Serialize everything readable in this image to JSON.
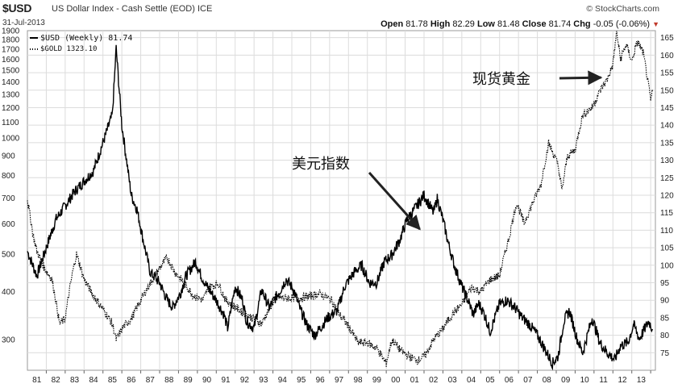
{
  "header": {
    "ticker": "$USD",
    "description": "US Dollar Index - Cash Settle (EOD)",
    "exchange": "ICE",
    "date": "31-Jul-2013",
    "brand": "© StockCharts.com",
    "ohlc": [
      {
        "label": "Open",
        "value": "81.78"
      },
      {
        "label": "High",
        "value": "82.29"
      },
      {
        "label": "Low",
        "value": "81.48"
      },
      {
        "label": "Close",
        "value": "81.74"
      },
      {
        "label": "Chg",
        "value": "-0.05 (-0.06%)"
      }
    ]
  },
  "colors": {
    "line": "#000000",
    "grid": "#dcdcdc",
    "chg_down": "#c0392b"
  },
  "chart_data": {
    "type": "line",
    "title": "$USD US Dollar Index - Cash Settle (EOD)",
    "x_axis": {
      "type": "time",
      "ticks": [
        "81",
        "82",
        "83",
        "84",
        "85",
        "86",
        "87",
        "88",
        "89",
        "90",
        "91",
        "92",
        "93",
        "94",
        "95",
        "96",
        "97",
        "98",
        "99",
        "00",
        "01",
        "02",
        "03",
        "04",
        "05",
        "06",
        "07",
        "08",
        "09",
        "10",
        "11",
        "12",
        "13"
      ]
    },
    "y_left": {
      "scale": "log",
      "range": [
        250,
        1900
      ],
      "ticks": [
        1900,
        1800,
        1700,
        1600,
        1500,
        1400,
        1300,
        1200,
        1100,
        1000,
        900,
        800,
        700,
        600,
        500,
        400,
        300
      ],
      "series": "$GOLD"
    },
    "y_right": {
      "scale": "linear",
      "range": [
        70,
        167
      ],
      "ticks": [
        165,
        160,
        155,
        150,
        145,
        140,
        135,
        130,
        125,
        120,
        115,
        110,
        105,
        100,
        95,
        90,
        85,
        80,
        75
      ],
      "series": "$USD"
    },
    "legend": [
      {
        "label": "$USD (Weekly) 81.74",
        "style": "solid"
      },
      {
        "label": "$GOLD 1323.10",
        "style": "dotted"
      }
    ],
    "annotations": [
      {
        "text": "美元指数",
        "target": "$USD",
        "x": 2001.4,
        "y": 111
      },
      {
        "text": "现货黄金",
        "target": "$GOLD",
        "x": 2011.0,
        "y": 1450
      }
    ],
    "series": [
      {
        "name": "$USD",
        "axis": "right",
        "points": [
          [
            1980.5,
            104
          ],
          [
            1981.0,
            97
          ],
          [
            1981.5,
            105
          ],
          [
            1982.0,
            113
          ],
          [
            1982.5,
            117
          ],
          [
            1983.0,
            121
          ],
          [
            1983.5,
            124
          ],
          [
            1984.0,
            127
          ],
          [
            1984.5,
            135
          ],
          [
            1985.0,
            143
          ],
          [
            1985.2,
            162
          ],
          [
            1985.5,
            140
          ],
          [
            1985.8,
            128
          ],
          [
            1986.0,
            120
          ],
          [
            1986.3,
            116
          ],
          [
            1986.6,
            108
          ],
          [
            1987.0,
            98
          ],
          [
            1987.5,
            95
          ],
          [
            1987.9,
            90
          ],
          [
            1988.2,
            88
          ],
          [
            1988.6,
            92
          ],
          [
            1988.9,
            97
          ],
          [
            1989.4,
            101
          ],
          [
            1989.7,
            97
          ],
          [
            1990.0,
            94
          ],
          [
            1990.5,
            90
          ],
          [
            1990.9,
            86
          ],
          [
            1991.1,
            82
          ],
          [
            1991.5,
            94
          ],
          [
            1991.9,
            90
          ],
          [
            1992.1,
            84
          ],
          [
            1992.5,
            82
          ],
          [
            1992.9,
            93
          ],
          [
            1993.3,
            88
          ],
          [
            1993.8,
            92
          ],
          [
            1994.2,
            96
          ],
          [
            1994.6,
            93
          ],
          [
            1994.9,
            88
          ],
          [
            1995.3,
            83
          ],
          [
            1995.7,
            80
          ],
          [
            1996.0,
            82
          ],
          [
            1996.4,
            85
          ],
          [
            1996.9,
            87
          ],
          [
            1997.3,
            94
          ],
          [
            1997.8,
            98
          ],
          [
            1998.2,
            100
          ],
          [
            1998.6,
            95
          ],
          [
            1999.0,
            95
          ],
          [
            1999.4,
            101
          ],
          [
            1999.8,
            103
          ],
          [
            2000.2,
            107
          ],
          [
            2000.6,
            113
          ],
          [
            2001.0,
            116
          ],
          [
            2001.5,
            120
          ],
          [
            2002.0,
            115
          ],
          [
            2002.2,
            119
          ],
          [
            2002.5,
            113
          ],
          [
            2002.8,
            106
          ],
          [
            2003.1,
            100
          ],
          [
            2003.5,
            94
          ],
          [
            2003.9,
            89
          ],
          [
            2004.1,
            86
          ],
          [
            2004.4,
            89
          ],
          [
            2004.7,
            86
          ],
          [
            2005.0,
            81
          ],
          [
            2005.5,
            89
          ],
          [
            2005.9,
            90
          ],
          [
            2006.3,
            88
          ],
          [
            2006.7,
            85
          ],
          [
            2007.1,
            83
          ],
          [
            2007.5,
            80
          ],
          [
            2007.9,
            76
          ],
          [
            2008.3,
            72
          ],
          [
            2008.6,
            74
          ],
          [
            2008.9,
            84
          ],
          [
            2009.2,
            87
          ],
          [
            2009.6,
            79
          ],
          [
            2009.9,
            75
          ],
          [
            2010.4,
            85
          ],
          [
            2010.8,
            78
          ],
          [
            2011.2,
            75
          ],
          [
            2011.6,
            73
          ],
          [
            2011.9,
            77
          ],
          [
            2012.3,
            78
          ],
          [
            2012.6,
            83
          ],
          [
            2012.9,
            79
          ],
          [
            2013.2,
            82
          ],
          [
            2013.4,
            84
          ],
          [
            2013.6,
            81.74
          ]
        ]
      },
      {
        "name": "$GOLD",
        "axis": "left",
        "points": [
          [
            1980.5,
            690
          ],
          [
            1980.8,
            560
          ],
          [
            1981.0,
            510
          ],
          [
            1981.4,
            460
          ],
          [
            1981.8,
            430
          ],
          [
            1982.2,
            330
          ],
          [
            1982.5,
            340
          ],
          [
            1982.9,
            450
          ],
          [
            1983.1,
            500
          ],
          [
            1983.5,
            430
          ],
          [
            1984.0,
            390
          ],
          [
            1984.5,
            360
          ],
          [
            1985.0,
            330
          ],
          [
            1985.2,
            300
          ],
          [
            1985.6,
            325
          ],
          [
            1986.0,
            340
          ],
          [
            1986.5,
            380
          ],
          [
            1987.0,
            420
          ],
          [
            1987.5,
            460
          ],
          [
            1987.9,
            490
          ],
          [
            1988.3,
            450
          ],
          [
            1988.8,
            420
          ],
          [
            1989.3,
            390
          ],
          [
            1989.8,
            380
          ],
          [
            1990.1,
            410
          ],
          [
            1990.6,
            420
          ],
          [
            1991.0,
            380
          ],
          [
            1991.5,
            365
          ],
          [
            1992.0,
            350
          ],
          [
            1992.5,
            340
          ],
          [
            1992.9,
            330
          ],
          [
            1993.3,
            360
          ],
          [
            1993.7,
            390
          ],
          [
            1994.0,
            385
          ],
          [
            1994.5,
            385
          ],
          [
            1995.0,
            385
          ],
          [
            1995.5,
            390
          ],
          [
            1996.0,
            395
          ],
          [
            1996.6,
            380
          ],
          [
            1997.0,
            350
          ],
          [
            1997.5,
            325
          ],
          [
            1998.0,
            295
          ],
          [
            1998.5,
            295
          ],
          [
            1999.0,
            285
          ],
          [
            1999.5,
            260
          ],
          [
            1999.8,
            300
          ],
          [
            2000.3,
            280
          ],
          [
            2000.8,
            270
          ],
          [
            2001.2,
            265
          ],
          [
            2001.6,
            275
          ],
          [
            2002.0,
            300
          ],
          [
            2002.5,
            320
          ],
          [
            2003.0,
            350
          ],
          [
            2003.5,
            370
          ],
          [
            2004.0,
            410
          ],
          [
            2004.5,
            400
          ],
          [
            2005.0,
            430
          ],
          [
            2005.5,
            440
          ],
          [
            2006.0,
            550
          ],
          [
            2006.4,
            680
          ],
          [
            2006.8,
            600
          ],
          [
            2007.2,
            670
          ],
          [
            2007.7,
            760
          ],
          [
            2008.1,
            970
          ],
          [
            2008.6,
            850
          ],
          [
            2008.8,
            730
          ],
          [
            2009.1,
            900
          ],
          [
            2009.5,
            930
          ],
          [
            2009.9,
            1150
          ],
          [
            2010.4,
            1200
          ],
          [
            2010.9,
            1350
          ],
          [
            2011.2,
            1420
          ],
          [
            2011.5,
            1550
          ],
          [
            2011.7,
            1880
          ],
          [
            2011.9,
            1600
          ],
          [
            2012.2,
            1750
          ],
          [
            2012.5,
            1580
          ],
          [
            2012.8,
            1780
          ],
          [
            2013.1,
            1670
          ],
          [
            2013.35,
            1400
          ],
          [
            2013.5,
            1250
          ],
          [
            2013.6,
            1323
          ]
        ]
      }
    ]
  }
}
